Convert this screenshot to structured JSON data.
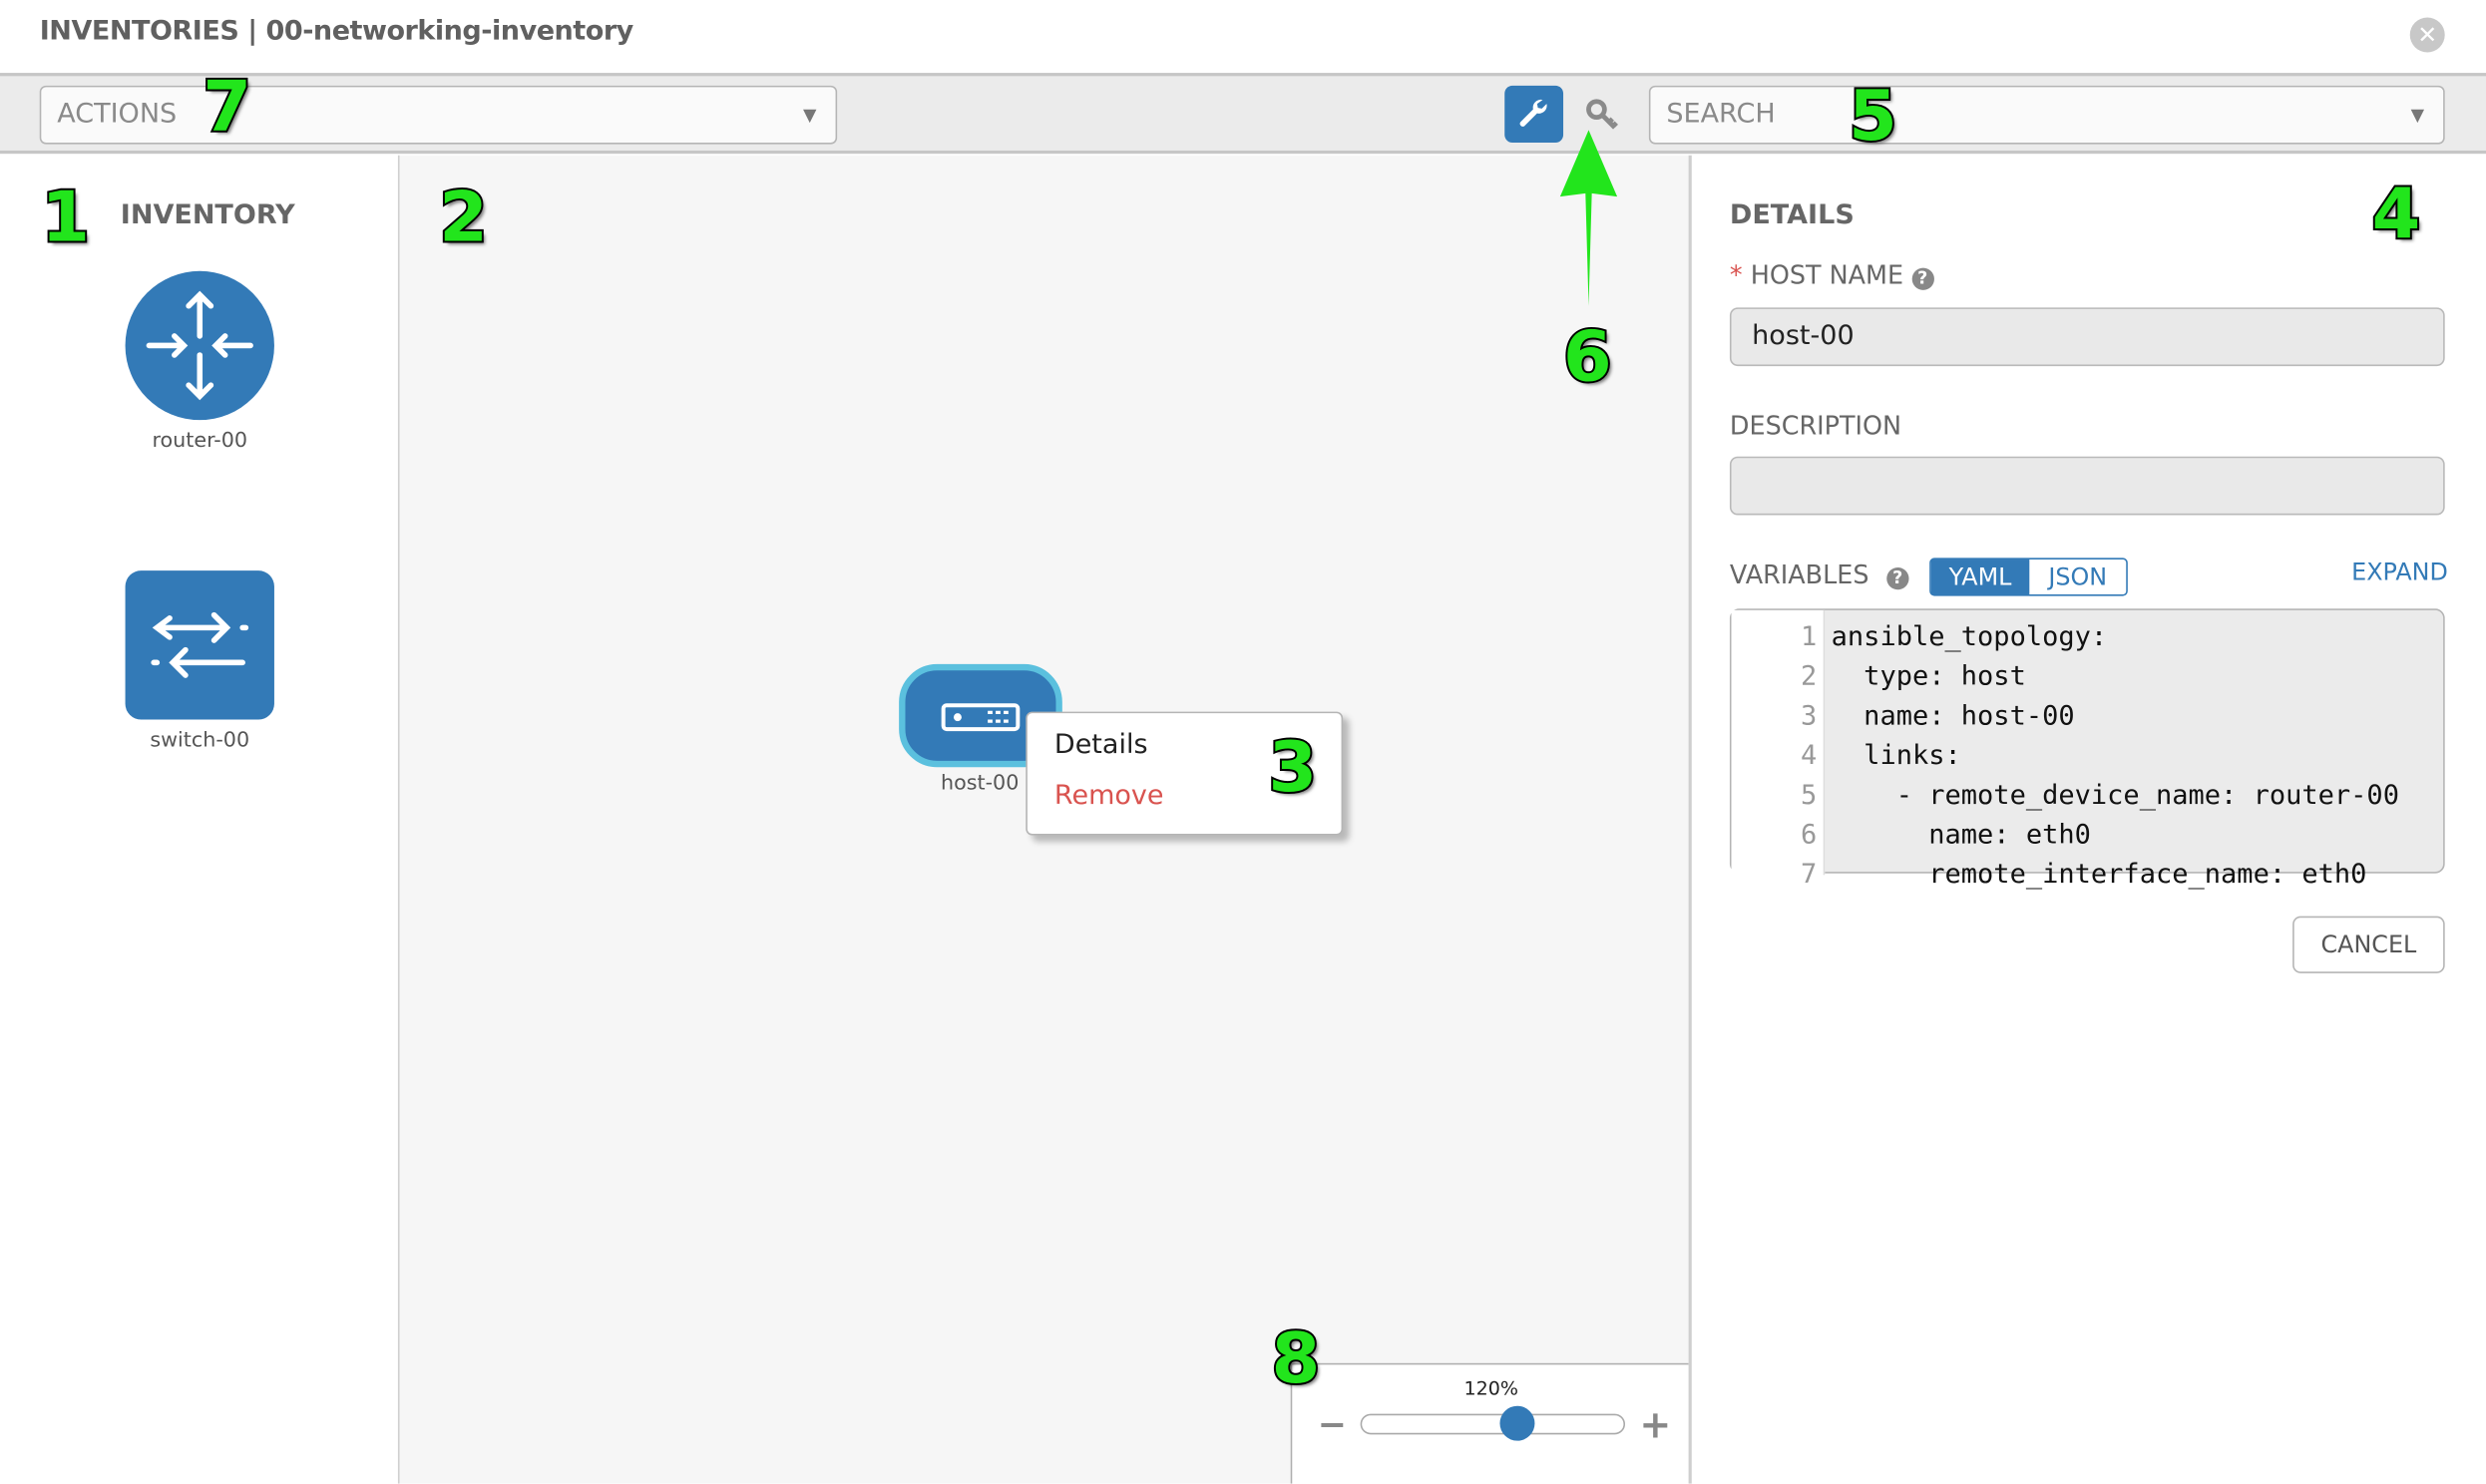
{
  "header": {
    "title": "INVENTORIES | 00-networking-inventory",
    "close_icon": "close-circle-icon"
  },
  "toolbar": {
    "actions_placeholder": "ACTIONS",
    "search_placeholder": "SEARCH",
    "wrench_icon": "wrench-icon",
    "key_icon": "key-icon",
    "accent_color": "#337ab7"
  },
  "inventory": {
    "title": "INVENTORY",
    "items": [
      {
        "label": "router-00",
        "icon": "router-icon"
      },
      {
        "label": "switch-00",
        "icon": "switch-icon"
      }
    ]
  },
  "canvas": {
    "node": {
      "label": "host-00",
      "icon": "host-icon"
    },
    "context_menu": {
      "details": "Details",
      "remove": "Remove",
      "remove_color": "#d9534f"
    },
    "zoom": {
      "label": "120%",
      "value_percent": 120,
      "slider_fraction": 0.6,
      "minus": "−",
      "plus": "+"
    }
  },
  "details": {
    "title": "DETAILS",
    "required_marker": "*",
    "host_name_label": "HOST NAME",
    "host_name_value": "host-00",
    "description_label": "DESCRIPTION",
    "description_value": "",
    "variables_label": "VARIABLES",
    "yaml_label": "YAML",
    "json_label": "JSON",
    "expand_label": "EXPAND",
    "code_lines": [
      {
        "n": "1",
        "text": "ansible_topology:"
      },
      {
        "n": "2",
        "text": "  type: host"
      },
      {
        "n": "3",
        "text": "  name: host-00"
      },
      {
        "n": "4",
        "text": "  links:"
      },
      {
        "n": "5",
        "text": "    - remote_device_name: router-00"
      },
      {
        "n": "6",
        "text": "      name: eth0"
      },
      {
        "n": "7",
        "text": "      remote_interface_name: eth0"
      }
    ],
    "cancel_label": "CANCEL"
  },
  "annotations": [
    "1",
    "2",
    "3",
    "4",
    "5",
    "6",
    "7",
    "8"
  ],
  "annotation_color": "#22e51c"
}
